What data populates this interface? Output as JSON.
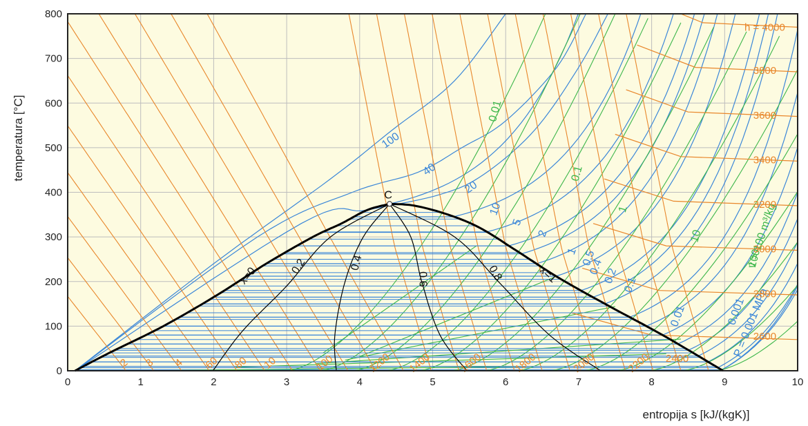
{
  "chart_data": {
    "type": "line",
    "title": "",
    "xlabel": "entropija s [kJ/(kgK)]",
    "ylabel": "temperatura [°C]",
    "xlim": [
      0,
      10
    ],
    "ylim": [
      0,
      800
    ],
    "xticks": [
      "0",
      "1",
      "2",
      "3",
      "4",
      "5",
      "6",
      "7",
      "8",
      "9",
      "10"
    ],
    "yticks": [
      "0",
      "100",
      "200",
      "300",
      "400",
      "500",
      "600",
      "700",
      "800"
    ],
    "grid": true,
    "colors": {
      "plot_bg": "#fdfbe0",
      "grid": "#bdbdbd",
      "isobar": "#3a86d8",
      "isochore": "#3cb64a",
      "isenthalp": "#e8862a",
      "saturation": "#000000",
      "tie_line": "#3a86d8"
    },
    "critical_point": {
      "label": "C",
      "s": 4.41,
      "t": 374
    },
    "saturation_dome": {
      "liquid": {
        "s": [
          0.1,
          0.57,
          1.31,
          2.05,
          2.72,
          3.36,
          3.75,
          4.1,
          4.41
        ],
        "t": [
          0,
          40,
          100,
          170,
          240,
          300,
          330,
          360,
          374
        ]
      },
      "vapor": {
        "s": [
          4.41,
          4.75,
          5.21,
          5.65,
          6.14,
          6.71,
          7.36,
          8.15,
          8.98
        ],
        "t": [
          374,
          370,
          350,
          320,
          270,
          210,
          150,
          80,
          0
        ]
      },
      "liquid_label": "x=0",
      "vapor_label": "x=1"
    },
    "quality_lines": [
      {
        "label": "0.2",
        "s": [
          1.99,
          2.4,
          3.0,
          3.6,
          4.41
        ],
        "t": [
          0,
          90,
          190,
          300,
          374
        ]
      },
      {
        "label": "0.4",
        "s": [
          3.68,
          3.66,
          3.8,
          4.05,
          4.41
        ],
        "t": [
          0,
          80,
          200,
          300,
          374
        ]
      },
      {
        "label": "0.6",
        "s": [
          5.47,
          5.1,
          4.85,
          4.7,
          4.41
        ],
        "t": [
          0,
          80,
          200,
          300,
          374
        ]
      },
      {
        "label": "0.8",
        "s": [
          7.3,
          6.6,
          5.9,
          5.3,
          4.41
        ],
        "t": [
          0,
          80,
          200,
          300,
          374
        ]
      }
    ],
    "isobars": {
      "unit_label": "P = 0.001 MPa",
      "labels": [
        "100",
        "40",
        "20",
        "10",
        "5",
        "2",
        "1",
        "0.5",
        "0.4",
        "0.2",
        "0.1",
        "0.01",
        "0.001"
      ],
      "label_pos": [
        [
          4.45,
          510
        ],
        [
          4.98,
          445
        ],
        [
          5.55,
          405
        ],
        [
          5.9,
          360
        ],
        [
          6.2,
          330
        ],
        [
          6.55,
          305
        ],
        [
          6.95,
          265
        ],
        [
          7.18,
          250
        ],
        [
          7.28,
          230
        ],
        [
          7.48,
          210
        ],
        [
          7.75,
          190
        ],
        [
          8.4,
          120
        ],
        [
          9.2,
          130
        ]
      ]
    },
    "isochores": {
      "unit_label": "v = 100 m³/kg",
      "labels": [
        "0.01",
        "0.1",
        "1",
        "10",
        "100"
      ],
      "label_pos": [
        [
          5.9,
          580
        ],
        [
          7.02,
          440
        ],
        [
          7.65,
          360
        ],
        [
          8.65,
          300
        ],
        [
          9.45,
          250
        ]
      ]
    },
    "isenthalps": {
      "unit_label": "h = 4000",
      "labels": [
        "2",
        "3",
        "4",
        "60",
        "80",
        "10",
        "100",
        "1200",
        "1400",
        "1600",
        "1800",
        "2000",
        "2200",
        "2400",
        "2600",
        "2800",
        "3000",
        "3200",
        "3400",
        "3600",
        "3800"
      ],
      "label_pos": [
        [
          0.8,
          12
        ],
        [
          1.15,
          12
        ],
        [
          1.55,
          12
        ],
        [
          2.0,
          12
        ],
        [
          2.4,
          12
        ],
        [
          2.8,
          12
        ],
        [
          3.55,
          12
        ],
        [
          4.3,
          12
        ],
        [
          4.85,
          12
        ],
        [
          5.55,
          12
        ],
        [
          6.3,
          12
        ],
        [
          7.1,
          12
        ],
        [
          7.85,
          12
        ],
        [
          8.35,
          20
        ],
        [
          9.55,
          70
        ],
        [
          9.55,
          165
        ],
        [
          9.55,
          265
        ],
        [
          9.55,
          365
        ],
        [
          9.55,
          465
        ],
        [
          9.55,
          565
        ],
        [
          9.55,
          665
        ]
      ]
    }
  }
}
